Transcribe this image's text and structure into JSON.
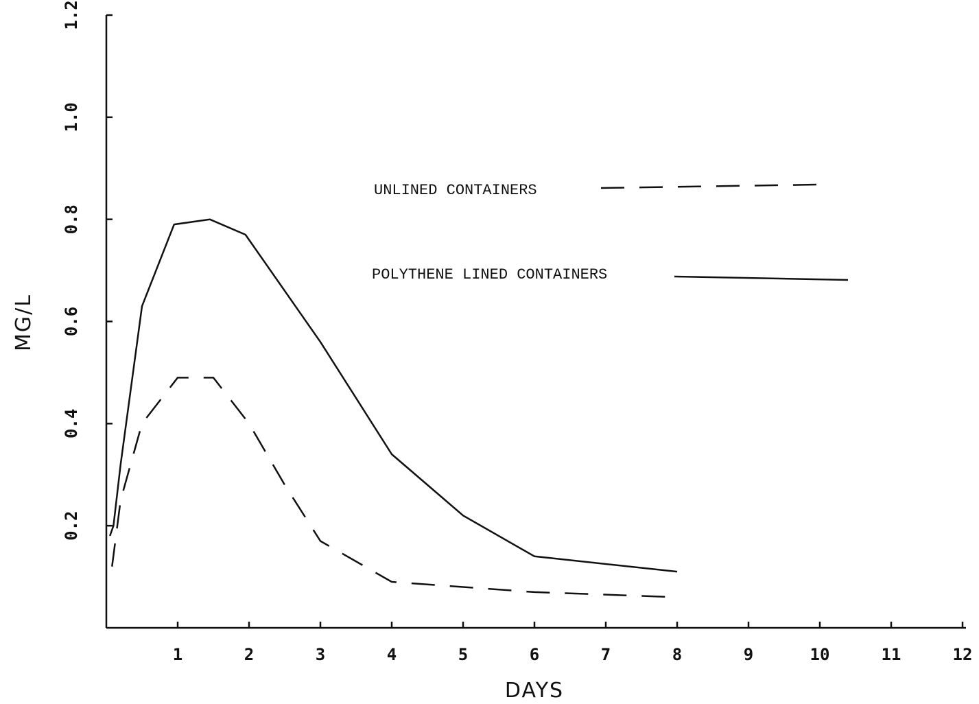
{
  "chart_data": {
    "type": "line",
    "title": "",
    "xlabel": "DAYS",
    "ylabel": "MG/L",
    "xlim": [
      0,
      12
    ],
    "ylim": [
      0,
      1.2
    ],
    "x_ticks": [
      "1",
      "2",
      "3",
      "4",
      "5",
      "6",
      "7",
      "8",
      "9",
      "10",
      "11",
      "12"
    ],
    "y_ticks": [
      "0.2",
      "0.4",
      "0.6",
      "0.8",
      "1.0",
      "1.2"
    ],
    "grid": false,
    "legend_position": "right",
    "series": [
      {
        "name": "UNLINED CONTAINERS",
        "style": "dashed",
        "x": [
          0.08,
          0.2,
          0.5,
          1.0,
          1.5,
          2.0,
          2.5,
          3.0,
          4.0,
          5.0,
          6.0,
          7.0,
          8.0
        ],
        "y": [
          0.12,
          0.25,
          0.4,
          0.49,
          0.49,
          0.4,
          0.28,
          0.17,
          0.09,
          0.08,
          0.07,
          0.065,
          0.06
        ]
      },
      {
        "name": "POLYTHENE LINED CONTAINERS",
        "style": "solid",
        "x": [
          0.05,
          0.1,
          0.2,
          0.5,
          0.95,
          1.45,
          1.95,
          3.0,
          4.0,
          5.0,
          6.0,
          8.0
        ],
        "y": [
          0.18,
          0.2,
          0.32,
          0.63,
          0.79,
          0.8,
          0.77,
          0.56,
          0.34,
          0.22,
          0.14,
          0.11
        ]
      }
    ]
  }
}
